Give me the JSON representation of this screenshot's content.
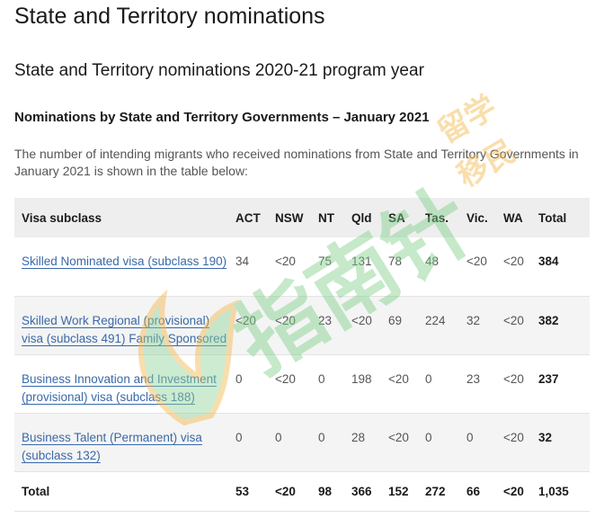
{
  "header": {
    "page_title": "State and Territory nominations",
    "program_title": "State and Territory nominations 2020-21 program year",
    "table_heading": "Nominations by State and Territory Governments – January 2021",
    "intro": "The number of intending migrants who received nominations from State and Territory Governments in January 2021 is shown in the table below:"
  },
  "table": {
    "columns": [
      "Visa subclass",
      "ACT",
      "NSW",
      "NT",
      "Qld",
      "SA",
      "Tas.",
      "Vic.",
      "WA",
      "Total"
    ],
    "rows": [
      {
        "subclass": "Skilled Nominated visa (subclass 190)",
        "values": [
          "34",
          "<20",
          "75",
          "131",
          "78",
          "48",
          "<20",
          "<20"
        ],
        "total": "384"
      },
      {
        "subclass": "Skilled Work Regional (provisional) visa (subclass 491) Family Sponsored",
        "values": [
          "<20",
          "<20",
          "23",
          "<20",
          "69",
          "224",
          "32",
          "<20"
        ],
        "total": "382"
      },
      {
        "subclass": "Business Innovation and Investment (provisional) visa (subclass 188)",
        "values": [
          "0",
          "<20",
          "0",
          "198",
          "<20",
          "0",
          "23",
          "<20"
        ],
        "total": "237"
      },
      {
        "subclass": "Business Talent (Permanent) visa (subclass 132)",
        "values": [
          "0",
          "0",
          "0",
          "28",
          "<20",
          "0",
          "0",
          "<20"
        ],
        "total": "32"
      }
    ],
    "footer": {
      "label": "Total",
      "values": [
        "53",
        "<20",
        "98",
        "366",
        "152",
        "272",
        "66",
        "<20"
      ],
      "total": "1,035"
    }
  },
  "watermark": {
    "text_main": "指南针",
    "text_side_1": "留学",
    "text_side_2": "移民",
    "color_green": "#7fd08a",
    "color_orange": "#f2b84a"
  }
}
